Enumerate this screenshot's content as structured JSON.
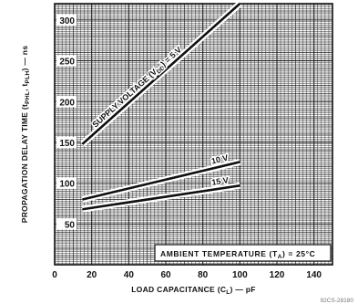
{
  "chart_data": {
    "type": "line",
    "xlabel": "LOAD CAPACITANCE (C",
    "xlabel_sub": "L",
    "xlabel_tail": ") — pF",
    "ylabel": "PROPAGATION DELAY TIME (t",
    "ylabel_sub1": "PHL",
    "ylabel_mid": ", t",
    "ylabel_sub2": "PLH",
    "ylabel_tail": ") — ns",
    "xlim": [
      0,
      150
    ],
    "ylim": [
      0,
      320
    ],
    "xticks": [
      "0",
      "20",
      "40",
      "60",
      "80",
      "100",
      "120",
      "140"
    ],
    "yticks": [
      "50",
      "100",
      "150",
      "200",
      "250",
      "300"
    ],
    "grid": true,
    "annotation": "AMBIENT TEMPERATURE (T",
    "annotation_sub": "A",
    "annotation_tail": ") = 25°C",
    "series": [
      {
        "name": "SUPPLY VOLTAGE (V",
        "name_sub": "DD",
        "name_tail": ") = 5 V",
        "x": [
          15,
          100
        ],
        "y": [
          148,
          320
        ]
      },
      {
        "name": "10 V",
        "x": [
          15,
          100
        ],
        "y": [
          80,
          126
        ]
      },
      {
        "name": "15 V",
        "x": [
          15,
          100
        ],
        "y": [
          68,
          97
        ]
      }
    ],
    "footer_text": "92CS-28180"
  }
}
